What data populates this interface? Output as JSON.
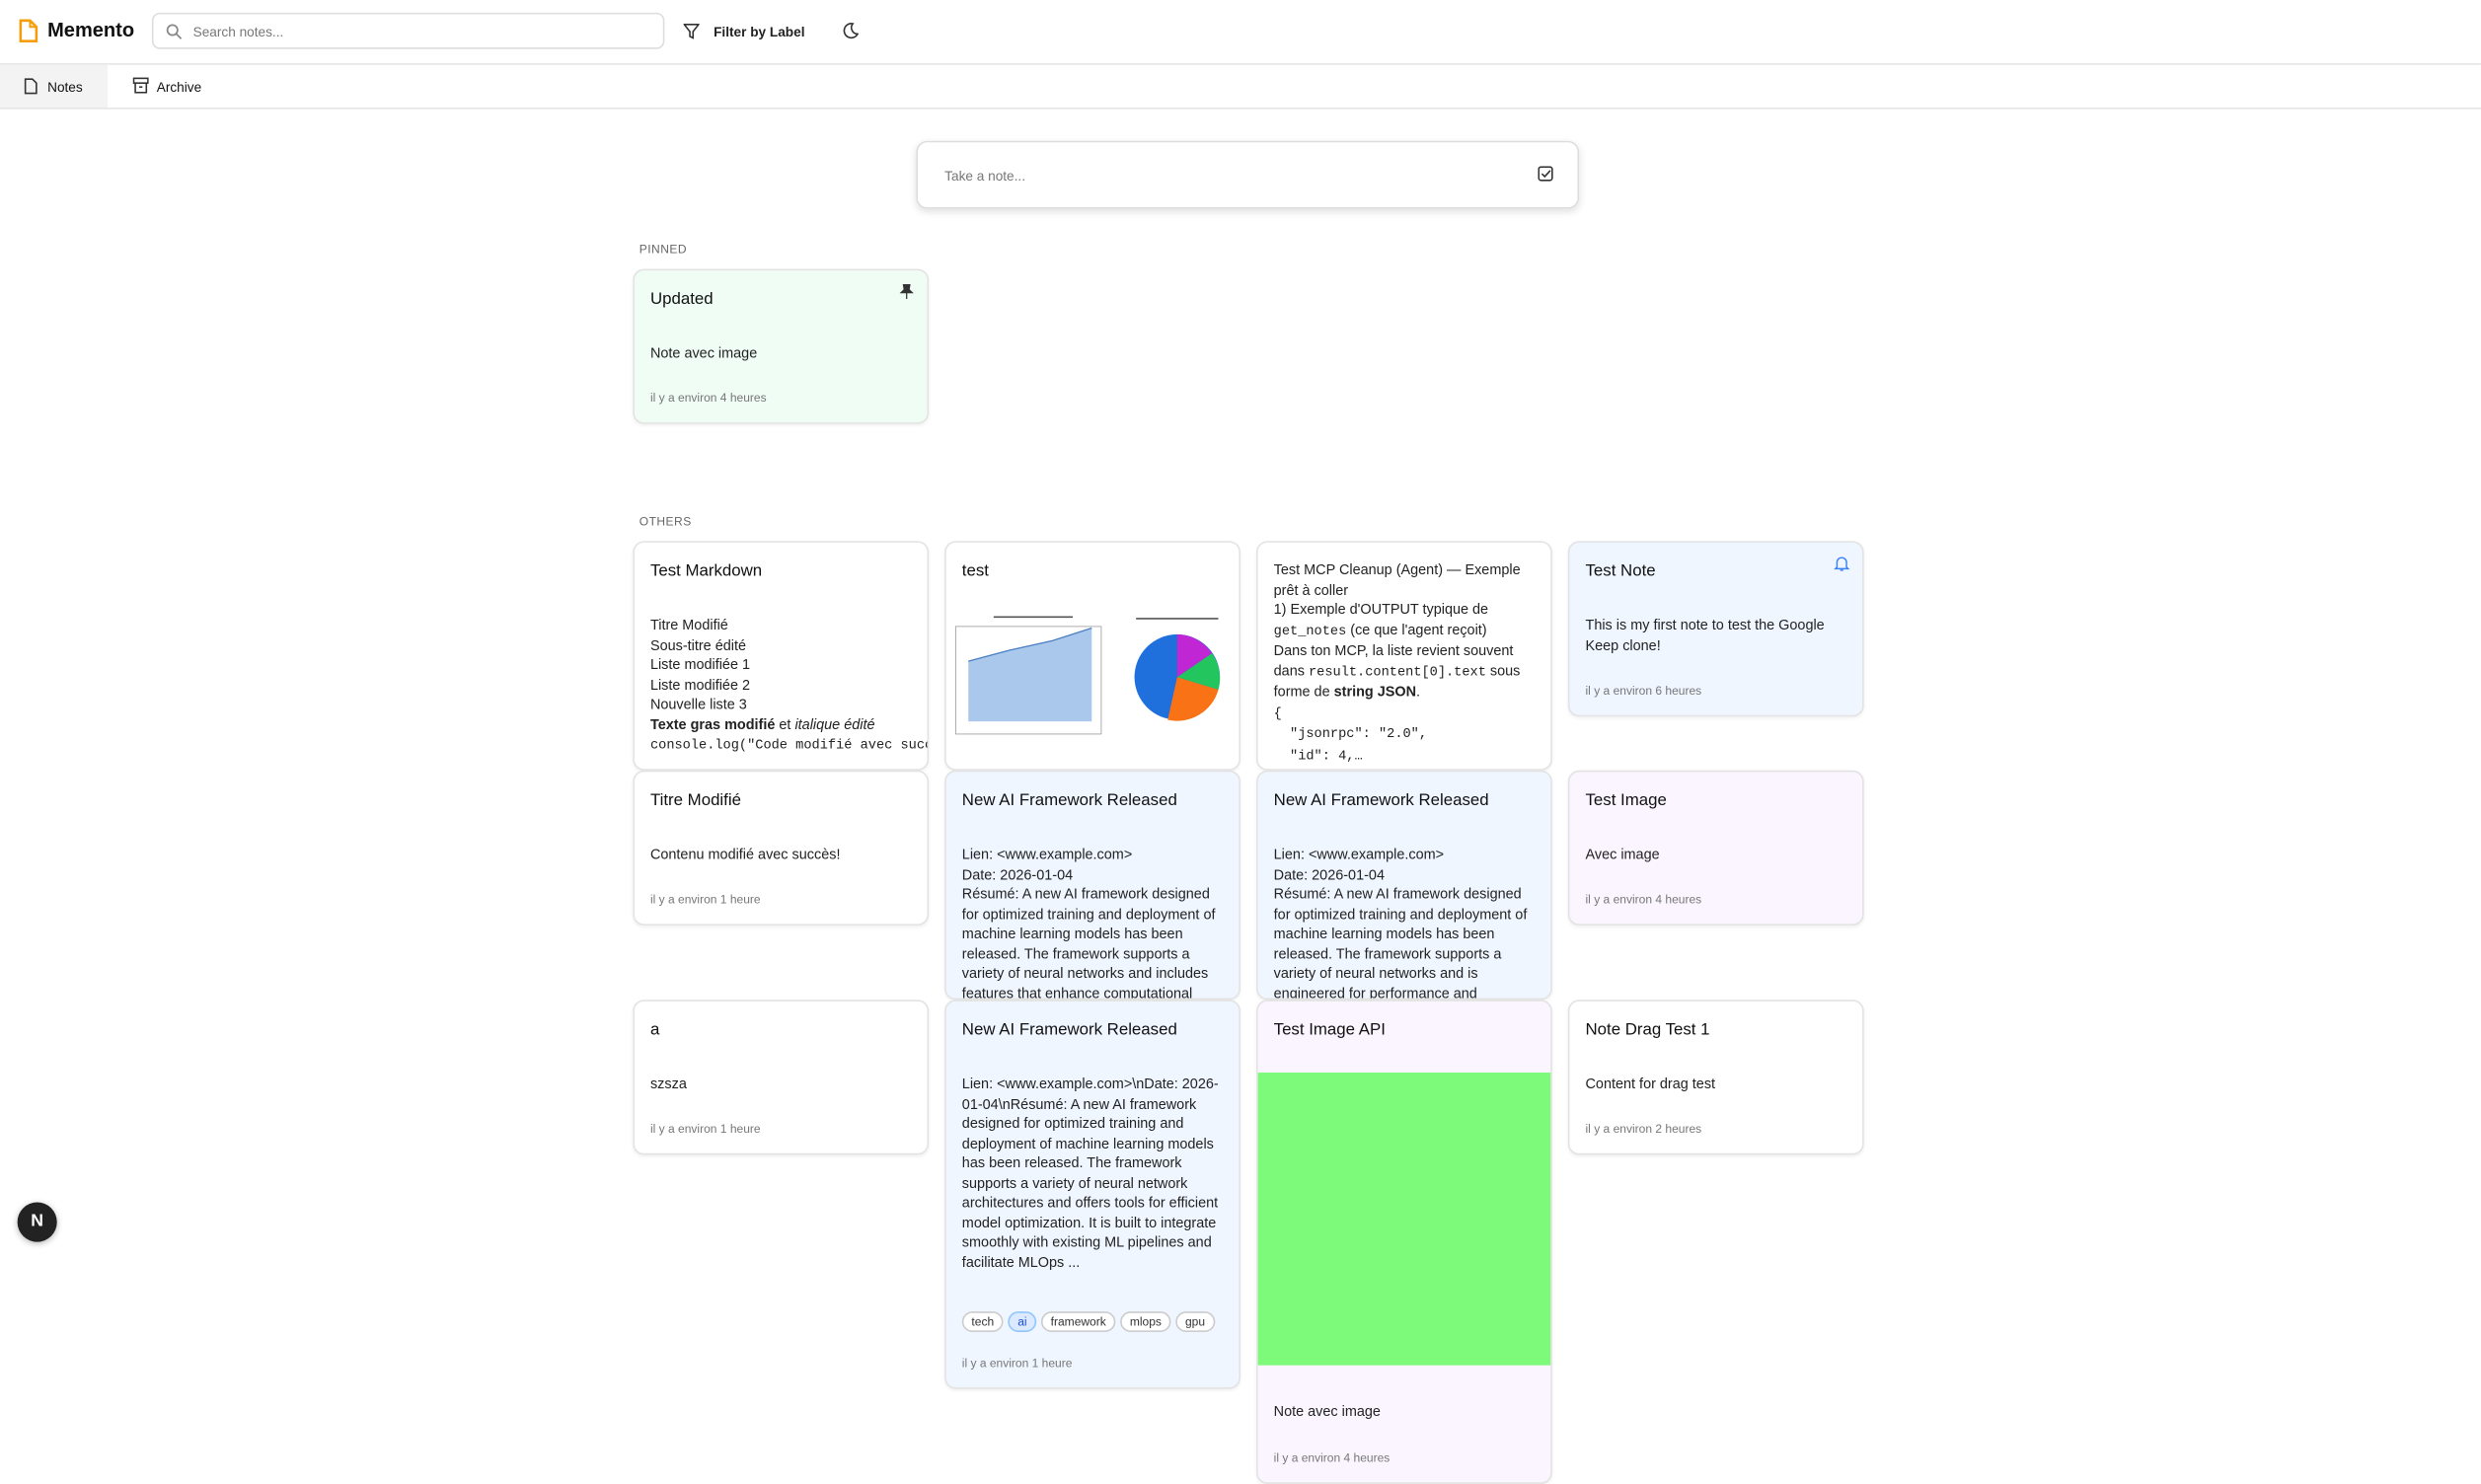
{
  "header": {
    "app_name": "Memento",
    "search_placeholder": "Search notes...",
    "filter_label": "Filter by Label"
  },
  "tabs": [
    {
      "label": "Notes"
    },
    {
      "label": "Archive"
    }
  ],
  "composer": {
    "placeholder": "Take a note..."
  },
  "pinned": {
    "label": "PINNED",
    "notes": [
      {
        "title": "Updated",
        "body": [
          [
            "Note avec image"
          ]
        ],
        "time": "il y a environ 4 heures"
      }
    ]
  },
  "others": {
    "label": "OTHERS",
    "notes": [
      {
        "title": "Test Markdown",
        "body": [
          [
            "Titre Modifié"
          ],
          [
            "Sous-titre édité"
          ],
          [
            "Liste modifiée 1"
          ],
          [
            "Liste modifiée 2"
          ],
          [
            "Nouvelle liste 3"
          ],
          [
            {
              "text": "Texte gras modifié",
              "style": "bold"
            },
            " et ",
            {
              "text": "italique édité",
              "style": "italic"
            }
          ],
          [
            {
              "text": "console.log(\"Code modifié avec succès\")",
              "style": "code"
            }
          ]
        ]
      },
      {
        "title": "test",
        "image": "chart"
      },
      {
        "body": [
          [
            "Test MCP Cleanup (Agent) — Exemple prêt à coller"
          ],
          [
            "1) Exemple d'OUTPUT typique de ",
            {
              "text": "get_notes",
              "style": "code"
            },
            " (ce que l'agent reçoit)"
          ],
          [
            "Dans ton MCP, la liste revient souvent dans ",
            {
              "text": "result.content[0].text",
              "style": "code"
            },
            " sous forme de ",
            {
              "text": "string JSON",
              "style": "bold"
            },
            "."
          ],
          [
            {
              "text": "{",
              "style": "code"
            }
          ],
          [
            {
              "text": "  \"jsonrpc\": \"2.0\",",
              "style": "code"
            }
          ],
          [
            {
              "text": "  \"id\": 4,…",
              "style": "code"
            }
          ]
        ]
      },
      {
        "title": "Test Note",
        "body": [
          [
            "This is my first note to test the Google Keep clone!"
          ]
        ],
        "time": "il y a environ 6 heures"
      },
      {
        "title": "Titre Modifié",
        "body": [
          [
            "Contenu modifié avec succès!"
          ]
        ],
        "time": "il y a environ 1 heure"
      },
      {
        "title": "New AI Framework Released",
        "body": [
          [
            "Lien: <www.example.com>"
          ],
          [
            "Date: 2026-01-04"
          ],
          [
            "Résumé: A new AI framework designed for optimized training and deployment of machine learning models has been released. The framework supports a variety of neural networks and includes features that enhance computational efficiency."
          ]
        ]
      },
      {
        "title": "New AI Framework Released",
        "body": [
          [
            "Lien: <www.example.com>"
          ],
          [
            "Date: 2026-01-04"
          ],
          [
            "Résumé: A new AI framework designed for optimized training and deployment of machine learning models has been released. The framework supports a variety of neural networks and is engineered for performance and scalability."
          ]
        ]
      },
      {
        "title": "Test Image",
        "body": [
          [
            "Avec image"
          ]
        ],
        "time": "il y a environ 4 heures"
      },
      {
        "title": "a",
        "body": [
          [
            "szsza"
          ]
        ],
        "time": "il y a environ 1 heure"
      },
      {
        "title": "New AI Framework Released",
        "body": [
          [
            "Lien: <www.example.com>\\nDate: 2026-01-04\\nRésumé: A new AI framework designed for optimized training and deployment of machine learning models has been released. The framework supports a variety of neural network architectures and offers tools for efficient model optimization. It is built to integrate smoothly with existing ML pipelines and facilitate MLOps ..."
          ]
        ],
        "tags": [
          {
            "label": "tech"
          },
          {
            "label": "ai",
            "active": true
          },
          {
            "label": "framework"
          },
          {
            "label": "mlops"
          },
          {
            "label": "gpu"
          }
        ],
        "time": "il y a environ 1 heure"
      },
      {
        "title": "Test Image API",
        "image": "green",
        "body": [
          [
            "Note avec image"
          ]
        ],
        "time": "il y a environ 4 heures"
      },
      {
        "title": "Note Drag Test 1",
        "body": [
          [
            "Content for drag test"
          ]
        ],
        "time": "il y a environ 2 heures"
      }
    ]
  }
}
